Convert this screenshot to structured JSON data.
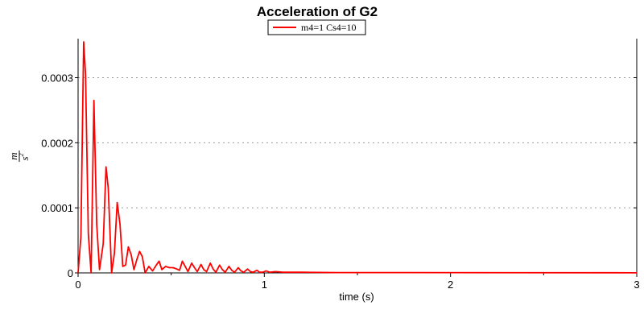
{
  "chart_data": {
    "type": "line",
    "title": "Acceleration of G2",
    "xlabel": "time (s)",
    "ylabel_numerator": "m",
    "ylabel_denominator": "s",
    "ylabel_exponent": "2",
    "xlim": [
      0,
      3
    ],
    "ylim": [
      0,
      0.00036
    ],
    "x_ticks": [
      0,
      1,
      2,
      3
    ],
    "x_tick_labels": [
      "0",
      "1",
      "2",
      "3"
    ],
    "y_ticks": [
      0,
      0.0001,
      0.0002,
      0.0003
    ],
    "y_tick_labels": [
      "0",
      "0.0001",
      "0.0002",
      "0.0003"
    ],
    "grid": "horizontal dotted",
    "legend_position": "top-center",
    "series": [
      {
        "name": "m4=1 Cs4=10",
        "color": "#ff0000",
        "points": [
          [
            0.0,
            0.0
          ],
          [
            0.015,
            5.5e-05
          ],
          [
            0.03,
            0.000355
          ],
          [
            0.04,
            0.000305
          ],
          [
            0.055,
            6e-05
          ],
          [
            0.07,
            0.0
          ],
          [
            0.085,
            0.000265
          ],
          [
            0.1,
            7.5e-05
          ],
          [
            0.115,
            5e-06
          ],
          [
            0.135,
            4.5e-05
          ],
          [
            0.15,
            0.000163
          ],
          [
            0.162,
            0.00013
          ],
          [
            0.18,
            0.0
          ],
          [
            0.195,
            3e-05
          ],
          [
            0.21,
            0.000108
          ],
          [
            0.225,
            7.5e-05
          ],
          [
            0.24,
            1e-05
          ],
          [
            0.255,
            1.2e-05
          ],
          [
            0.27,
            4e-05
          ],
          [
            0.285,
            2.8e-05
          ],
          [
            0.3,
            5e-06
          ],
          [
            0.315,
            2e-05
          ],
          [
            0.33,
            3.3e-05
          ],
          [
            0.345,
            2.5e-05
          ],
          [
            0.36,
            0.0
          ],
          [
            0.38,
            1e-05
          ],
          [
            0.4,
            3e-06
          ],
          [
            0.42,
            1.2e-05
          ],
          [
            0.435,
            1.8e-05
          ],
          [
            0.45,
            5e-06
          ],
          [
            0.47,
            1e-05
          ],
          [
            0.49,
            8e-06
          ],
          [
            0.51,
            8e-06
          ],
          [
            0.53,
            6e-06
          ],
          [
            0.545,
            4e-06
          ],
          [
            0.56,
            1.8e-05
          ],
          [
            0.575,
            1e-05
          ],
          [
            0.59,
            2e-06
          ],
          [
            0.61,
            1.5e-05
          ],
          [
            0.625,
            8e-06
          ],
          [
            0.64,
            2e-06
          ],
          [
            0.66,
            1.3e-05
          ],
          [
            0.675,
            5e-06
          ],
          [
            0.69,
            2e-06
          ],
          [
            0.71,
            1.5e-05
          ],
          [
            0.725,
            6e-06
          ],
          [
            0.74,
            1e-06
          ],
          [
            0.76,
            1.2e-05
          ],
          [
            0.775,
            5e-06
          ],
          [
            0.79,
            1e-06
          ],
          [
            0.81,
            1e-05
          ],
          [
            0.825,
            4e-06
          ],
          [
            0.84,
            1e-06
          ],
          [
            0.86,
            8e-06
          ],
          [
            0.875,
            3e-06
          ],
          [
            0.89,
            1e-06
          ],
          [
            0.91,
            6e-06
          ],
          [
            0.925,
            2e-06
          ],
          [
            0.94,
            1e-06
          ],
          [
            0.96,
            4e-06
          ],
          [
            0.975,
            1e-06
          ],
          [
            0.99,
            1e-06
          ],
          [
            1.01,
            3e-06
          ],
          [
            1.03,
            1e-06
          ],
          [
            1.06,
            2e-06
          ],
          [
            1.1,
            1e-06
          ],
          [
            1.2,
            1e-06
          ],
          [
            1.4,
            5e-07
          ],
          [
            1.8,
            5e-07
          ],
          [
            2.3,
            3e-07
          ],
          [
            3.0,
            2e-07
          ]
        ]
      }
    ]
  }
}
